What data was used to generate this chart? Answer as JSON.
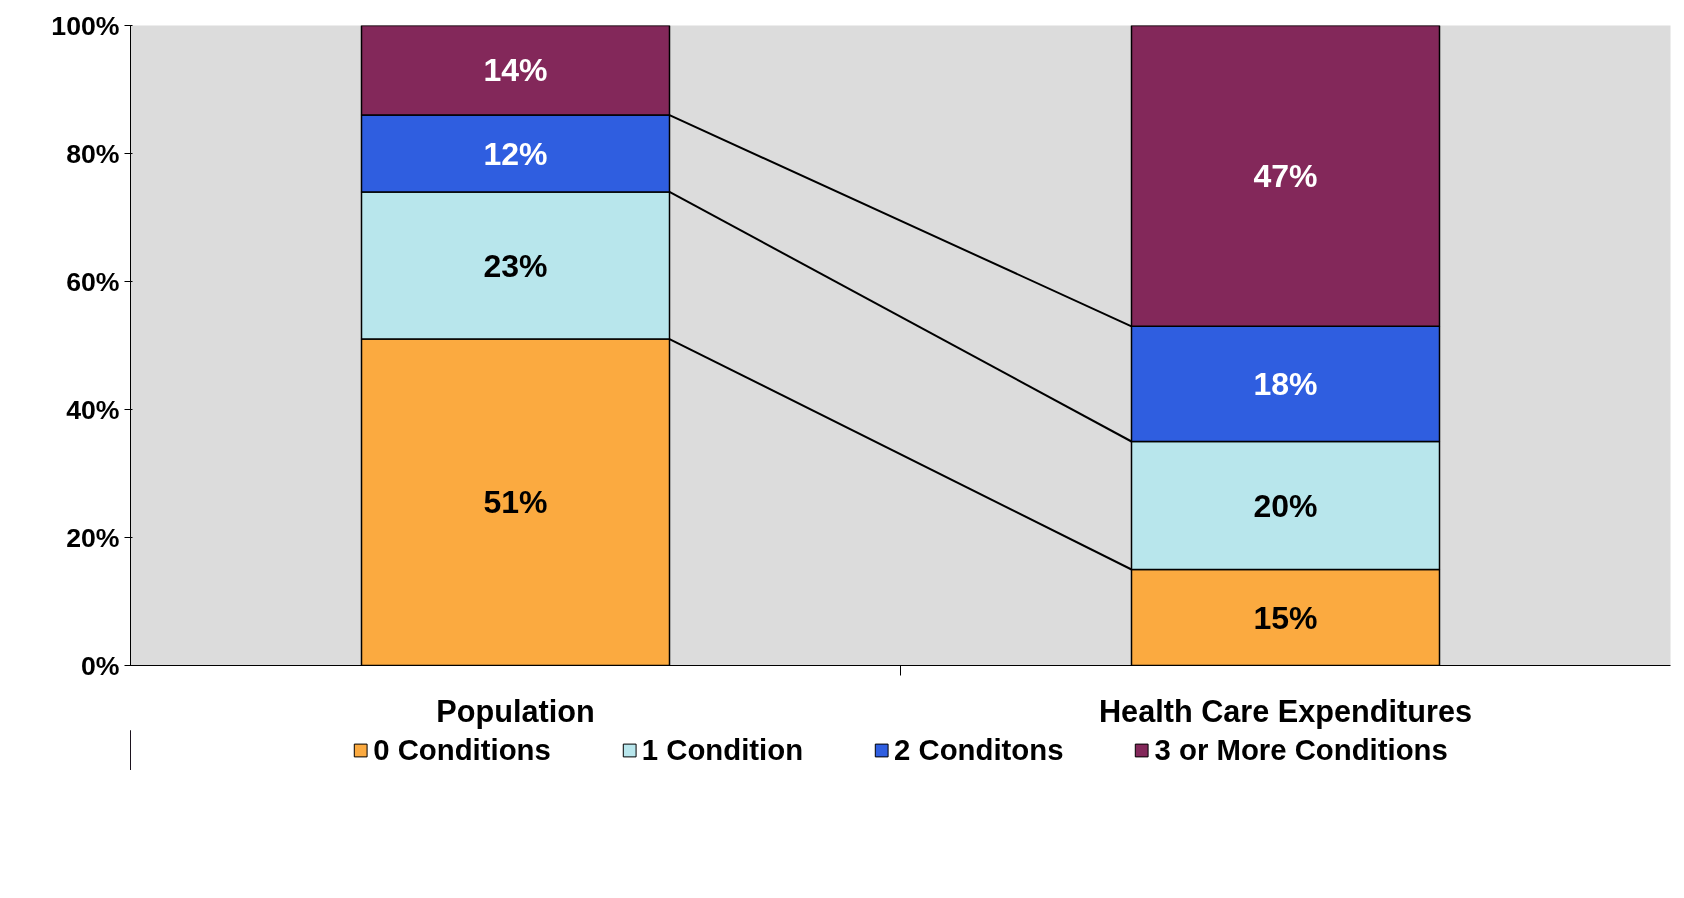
{
  "chart_data": {
    "type": "bar",
    "stacked": true,
    "categories": [
      "Population",
      "Health Care Expenditures"
    ],
    "series": [
      {
        "name": "0 Conditions",
        "color": "#fbaa40",
        "values": [
          51,
          15
        ],
        "value_labels": [
          "51%",
          "15%"
        ]
      },
      {
        "name": "1 Condition",
        "color": "#b8e6ec",
        "values": [
          23,
          20
        ],
        "value_labels": [
          "23%",
          "20%"
        ]
      },
      {
        "name": "2 Conditons",
        "color": "#2f5ee0",
        "values": [
          12,
          18
        ],
        "value_labels": [
          "12%",
          "18%"
        ]
      },
      {
        "name": "3 or More Conditions",
        "color": "#83285a",
        "values": [
          14,
          47
        ],
        "value_labels": [
          "14%",
          "47%"
        ]
      }
    ],
    "ylim": [
      0,
      100
    ],
    "yticks": [
      {
        "value": 0,
        "label": "0%"
      },
      {
        "value": 20,
        "label": "20%"
      },
      {
        "value": 40,
        "label": "40%"
      },
      {
        "value": 60,
        "label": "60%"
      },
      {
        "value": 80,
        "label": "80%"
      },
      {
        "value": 100,
        "label": "100%"
      }
    ],
    "grid": false,
    "legend": "bottom"
  }
}
